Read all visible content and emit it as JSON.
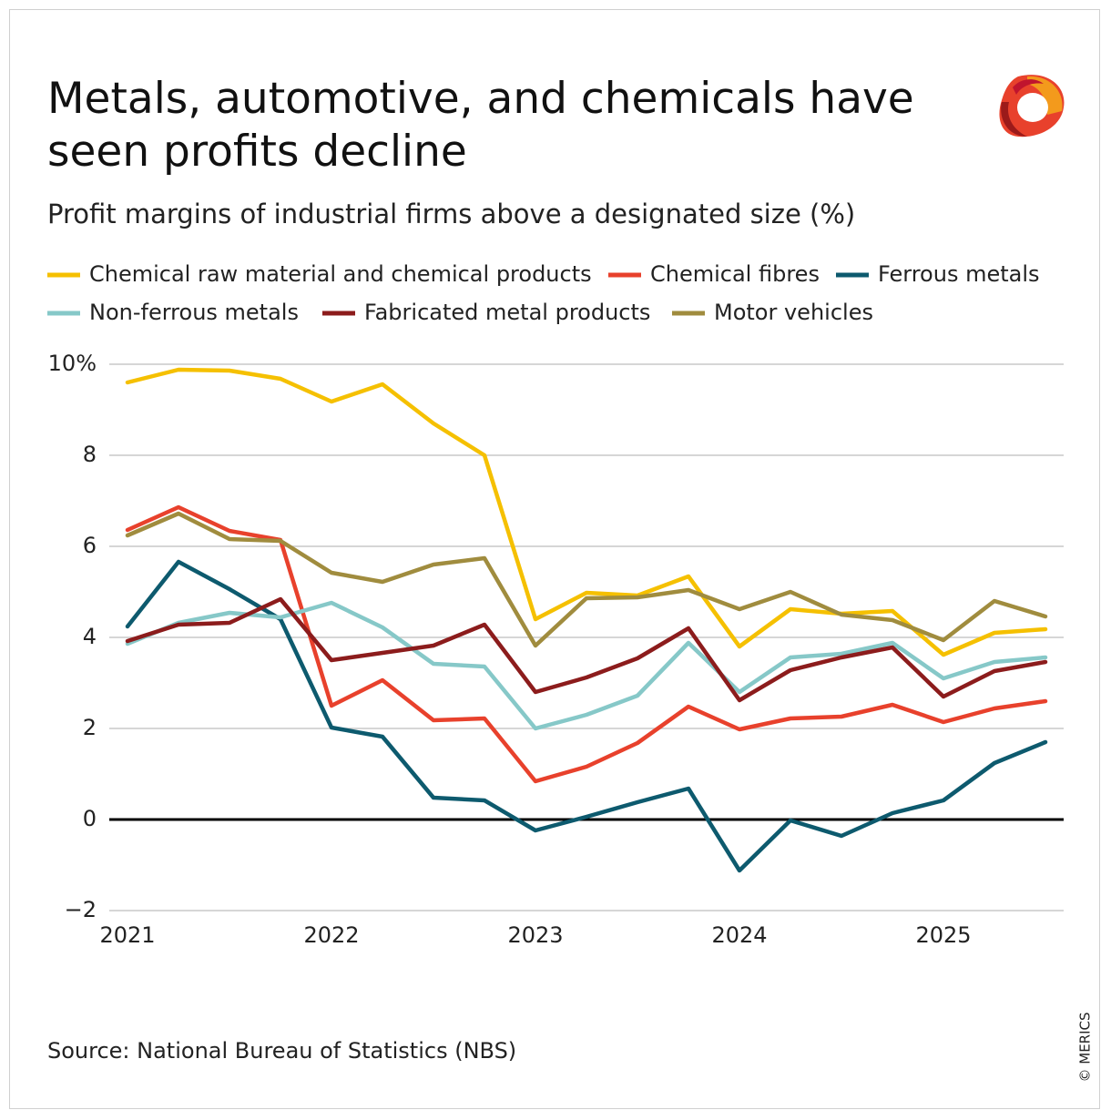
{
  "chart_data": {
    "type": "line",
    "title": "Metals, automotive, and chemicals have seen profits decline",
    "subtitle": "Profit margins of industrial firms above a designated size (%)",
    "source": "Source: National Bureau of Statistics (NBS)",
    "credit": "© MERICS",
    "categories": [
      "2021",
      null,
      null,
      null,
      "2022",
      null,
      null,
      null,
      "2023",
      null,
      null,
      null,
      "2024",
      null,
      null,
      null,
      "2025",
      null,
      null
    ],
    "ylim": [
      -2,
      10
    ],
    "yticks": [
      {
        "value": -2,
        "label": "−2"
      },
      0,
      2,
      4,
      6,
      8,
      {
        "value": 10,
        "label": "10%"
      }
    ],
    "grid": true,
    "series": [
      {
        "name": "Chemical raw material and chemical products",
        "color": "#f5c000",
        "values": [
          9.6,
          9.88,
          9.86,
          9.68,
          9.18,
          9.56,
          8.7,
          8.0,
          4.4,
          4.98,
          4.92,
          5.34,
          3.8,
          4.62,
          4.52,
          4.58,
          3.62,
          4.1,
          4.18
        ]
      },
      {
        "name": "Chemical fibres",
        "color": "#e8412c",
        "values": [
          6.36,
          6.86,
          6.34,
          6.14,
          2.5,
          3.06,
          2.18,
          2.22,
          0.84,
          1.16,
          1.68,
          2.48,
          1.98,
          2.22,
          2.26,
          2.52,
          2.14,
          2.44,
          2.6
        ]
      },
      {
        "name": "Ferrous metals",
        "color": "#0d5a6e",
        "values": [
          4.24,
          5.66,
          5.06,
          4.4,
          2.02,
          1.82,
          0.48,
          0.42,
          -0.24,
          0.06,
          0.38,
          0.68,
          -1.12,
          -0.02,
          -0.36,
          0.14,
          0.42,
          1.24,
          1.7
        ]
      },
      {
        "name": "Non-ferrous metals",
        "color": "#86c8c8",
        "values": [
          3.86,
          4.32,
          4.54,
          4.44,
          4.76,
          4.22,
          3.42,
          3.36,
          2.0,
          2.3,
          2.72,
          3.88,
          2.8,
          3.56,
          3.64,
          3.88,
          3.1,
          3.46,
          3.56
        ]
      },
      {
        "name": "Fabricated metal products",
        "color": "#8c1c1c",
        "values": [
          3.92,
          4.28,
          4.32,
          4.84,
          3.5,
          3.66,
          3.82,
          4.28,
          2.8,
          3.12,
          3.54,
          4.2,
          2.62,
          3.28,
          3.56,
          3.78,
          2.7,
          3.26,
          3.46
        ]
      },
      {
        "name": "Motor vehicles",
        "color": "#a08c3e",
        "values": [
          6.24,
          6.72,
          6.16,
          6.12,
          5.42,
          5.22,
          5.6,
          5.74,
          3.82,
          4.86,
          4.88,
          5.04,
          4.62,
          5.0,
          4.5,
          4.38,
          3.94,
          4.8,
          4.46
        ]
      }
    ]
  }
}
